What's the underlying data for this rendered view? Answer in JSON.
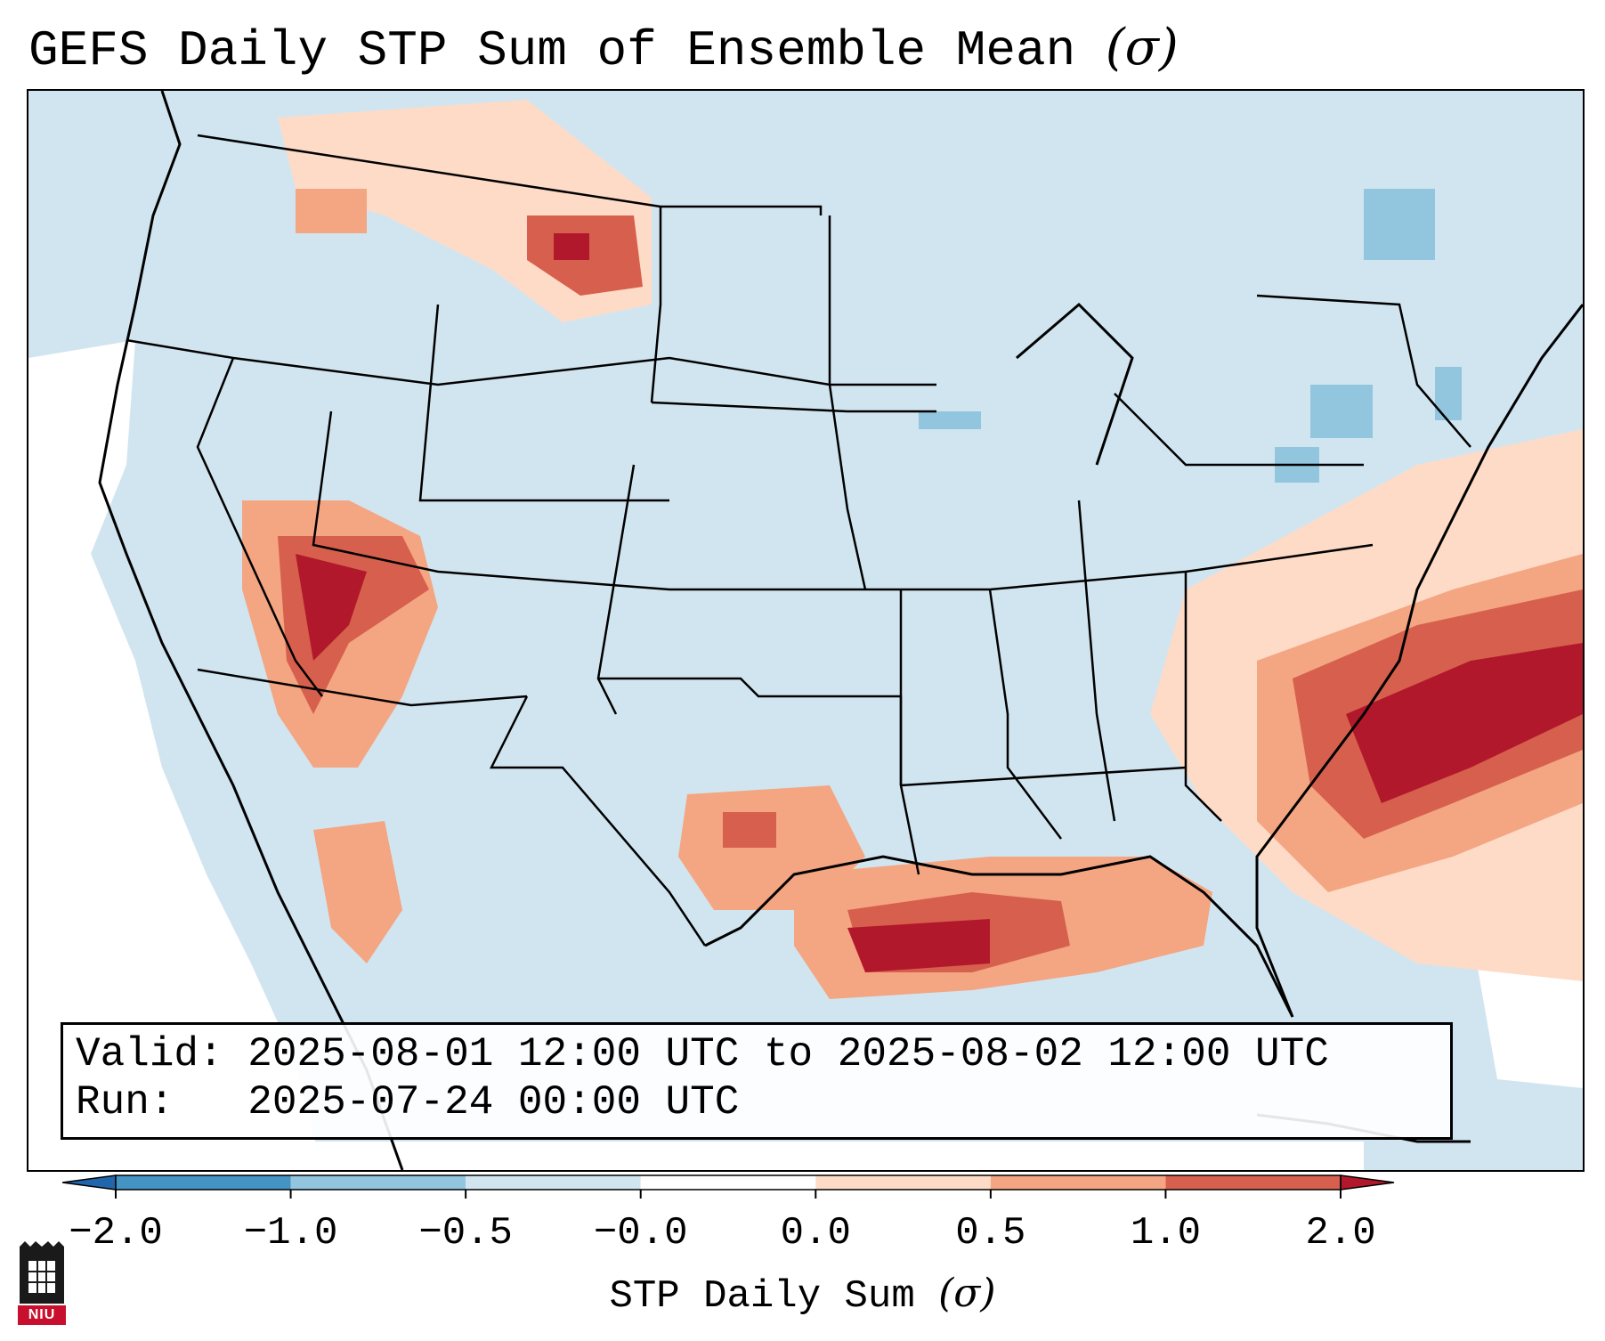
{
  "title": "GEFS Daily STP Sum of Ensemble Mean",
  "title_sigma": "(σ)",
  "info": {
    "valid_label": "Valid:",
    "valid_value": "2025-08-01 12:00 UTC to 2025-08-02 12:00 UTC",
    "run_label": "Run:",
    "run_value": "2025-07-24 00:00 UTC"
  },
  "colorbar": {
    "label": "STP Daily Sum",
    "label_sigma": "(σ)",
    "ticks": [
      "−2.0",
      "−1.0",
      "−0.5",
      "−0.0",
      "0.0",
      "0.5",
      "1.0",
      "2.0"
    ],
    "bins": [
      {
        "range": "< -2.0",
        "color": "#2166ac"
      },
      {
        "range": "-2.0 to -1.0",
        "color": "#4393c3"
      },
      {
        "range": "-1.0 to -0.5",
        "color": "#92c5de"
      },
      {
        "range": "-0.5 to -0.0",
        "color": "#d1e5f0"
      },
      {
        "range": "-0.0 to 0.0",
        "color": "#ffffff"
      },
      {
        "range": "0.0 to 0.5",
        "color": "#fddbc7"
      },
      {
        "range": "0.5 to 1.0",
        "color": "#f4a582"
      },
      {
        "range": "1.0 to 2.0",
        "color": "#d6604d"
      },
      {
        "range": "> 2.0",
        "color": "#b2182b"
      }
    ]
  },
  "logo_text": "NIU"
}
